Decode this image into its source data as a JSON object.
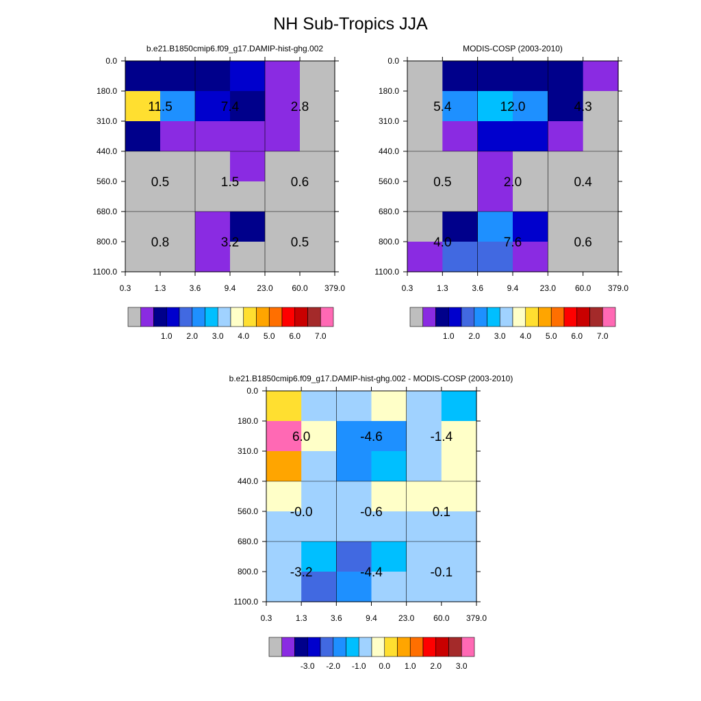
{
  "figure": {
    "title": "NH Sub-Tropics JJA"
  },
  "colors": {
    "gray": "#bebebe",
    "c1": "#8a2be2",
    "c2": "#00008b",
    "c3": "#0000cd",
    "c4": "#4169e1",
    "c5": "#1e90ff",
    "c6": "#00bfff",
    "c7": "#a0d2ff",
    "c8": "#ffffc8",
    "c9": "#ffdf30",
    "c10": "#ffa500",
    "c11": "#ff6f00",
    "c12": "#ff0000",
    "c13": "#c90000",
    "c14": "#a42a2a",
    "c15": "#ff69b4"
  },
  "chart_data": [
    {
      "type": "heatmap",
      "title": "b.e21.B1850cmip6.f09_g17.DAMIP-hist-ghg.002",
      "x_ticks": [
        "0.3",
        "1.3",
        "3.6",
        "9.4",
        "23.0",
        "60.0",
        "379.0"
      ],
      "y_ticks": [
        "0.0",
        "180.0",
        "310.0",
        "440.0",
        "560.0",
        "680.0",
        "800.0",
        "1100.0"
      ],
      "fine_colors": [
        [
          "c2",
          "c2",
          "c2",
          "c3",
          "c1",
          "gray"
        ],
        [
          "c9",
          "c5",
          "c3",
          "c2",
          "c1",
          "gray"
        ],
        [
          "c2",
          "c1",
          "c1",
          "c1",
          "c1",
          "gray"
        ],
        [
          "gray",
          "gray",
          "gray",
          "c1",
          "gray",
          "gray"
        ],
        [
          "gray",
          "gray",
          "gray",
          "gray",
          "gray",
          "gray"
        ],
        [
          "gray",
          "gray",
          "c1",
          "c2",
          "gray",
          "gray"
        ],
        [
          "gray",
          "gray",
          "c1",
          "gray",
          "gray",
          "gray"
        ]
      ],
      "aggregate_values": [
        [
          "11.5",
          "7.4",
          "2.8"
        ],
        [
          "0.5",
          "1.5",
          "0.6"
        ],
        [
          "0.8",
          "3.2",
          "0.5"
        ]
      ],
      "colorbar": {
        "colors": [
          "gray",
          "c1",
          "c2",
          "c3",
          "c4",
          "c5",
          "c6",
          "c7",
          "c8",
          "c9",
          "c10",
          "c11",
          "c12",
          "c13",
          "c14",
          "c15"
        ],
        "labels": [
          "1.0",
          "2.0",
          "3.0",
          "4.0",
          "5.0",
          "6.0",
          "7.0"
        ]
      }
    },
    {
      "type": "heatmap",
      "title": "MODIS-COSP (2003-2010)",
      "x_ticks": [
        "0.3",
        "1.3",
        "3.6",
        "9.4",
        "23.0",
        "60.0",
        "379.0"
      ],
      "y_ticks": [
        "0.0",
        "180.0",
        "310.0",
        "440.0",
        "560.0",
        "680.0",
        "800.0",
        "1100.0"
      ],
      "fine_colors": [
        [
          "gray",
          "c2",
          "c2",
          "c2",
          "c2",
          "c1"
        ],
        [
          "gray",
          "c5",
          "c6",
          "c5",
          "c2",
          "gray"
        ],
        [
          "gray",
          "c1",
          "c3",
          "c3",
          "c1",
          "gray"
        ],
        [
          "gray",
          "gray",
          "c1",
          "gray",
          "gray",
          "gray"
        ],
        [
          "gray",
          "gray",
          "c1",
          "gray",
          "gray",
          "gray"
        ],
        [
          "gray",
          "c2",
          "c5",
          "c3",
          "gray",
          "gray"
        ],
        [
          "c1",
          "c4",
          "c4",
          "c1",
          "gray",
          "gray"
        ]
      ],
      "aggregate_values": [
        [
          "5.4",
          "12.0",
          "4.3"
        ],
        [
          "0.5",
          "2.0",
          "0.4"
        ],
        [
          "4.0",
          "7.6",
          "0.6"
        ]
      ],
      "colorbar": {
        "colors": [
          "gray",
          "c1",
          "c2",
          "c3",
          "c4",
          "c5",
          "c6",
          "c7",
          "c8",
          "c9",
          "c10",
          "c11",
          "c12",
          "c13",
          "c14",
          "c15"
        ],
        "labels": [
          "1.0",
          "2.0",
          "3.0",
          "4.0",
          "5.0",
          "6.0",
          "7.0"
        ]
      }
    },
    {
      "type": "heatmap",
      "title": "b.e21.B1850cmip6.f09_g17.DAMIP-hist-ghg.002 - MODIS-COSP (2003-2010)",
      "x_ticks": [
        "0.3",
        "1.3",
        "3.6",
        "9.4",
        "23.0",
        "60.0",
        "379.0"
      ],
      "y_ticks": [
        "0.0",
        "180.0",
        "310.0",
        "440.0",
        "560.0",
        "680.0",
        "800.0",
        "1100.0"
      ],
      "fine_colors": [
        [
          "c9",
          "c7",
          "c7",
          "c8",
          "c7",
          "c6"
        ],
        [
          "c15",
          "c8",
          "c5",
          "c5",
          "c7",
          "c8"
        ],
        [
          "c10",
          "c7",
          "c5",
          "c6",
          "c7",
          "c8"
        ],
        [
          "c8",
          "c7",
          "c7",
          "c8",
          "c8",
          "c8"
        ],
        [
          "c7",
          "c7",
          "c7",
          "c7",
          "c7",
          "c7"
        ],
        [
          "c7",
          "c6",
          "c4",
          "c6",
          "c7",
          "c7"
        ],
        [
          "c7",
          "c4",
          "c5",
          "c7",
          "c7",
          "c7"
        ]
      ],
      "aggregate_values": [
        [
          "6.0",
          "-4.6",
          "-1.4"
        ],
        [
          "-0.0",
          "-0.6",
          "0.1"
        ],
        [
          "-3.2",
          "-4.4",
          "-0.1"
        ]
      ],
      "colorbar": {
        "colors": [
          "gray",
          "c1",
          "c2",
          "c3",
          "c4",
          "c5",
          "c6",
          "c7",
          "c8",
          "c9",
          "c10",
          "c11",
          "c12",
          "c13",
          "c14",
          "c15"
        ],
        "labels": [
          "-3.0",
          "-2.0",
          "-1.0",
          "0.0",
          "1.0",
          "2.0",
          "3.0"
        ]
      }
    }
  ]
}
